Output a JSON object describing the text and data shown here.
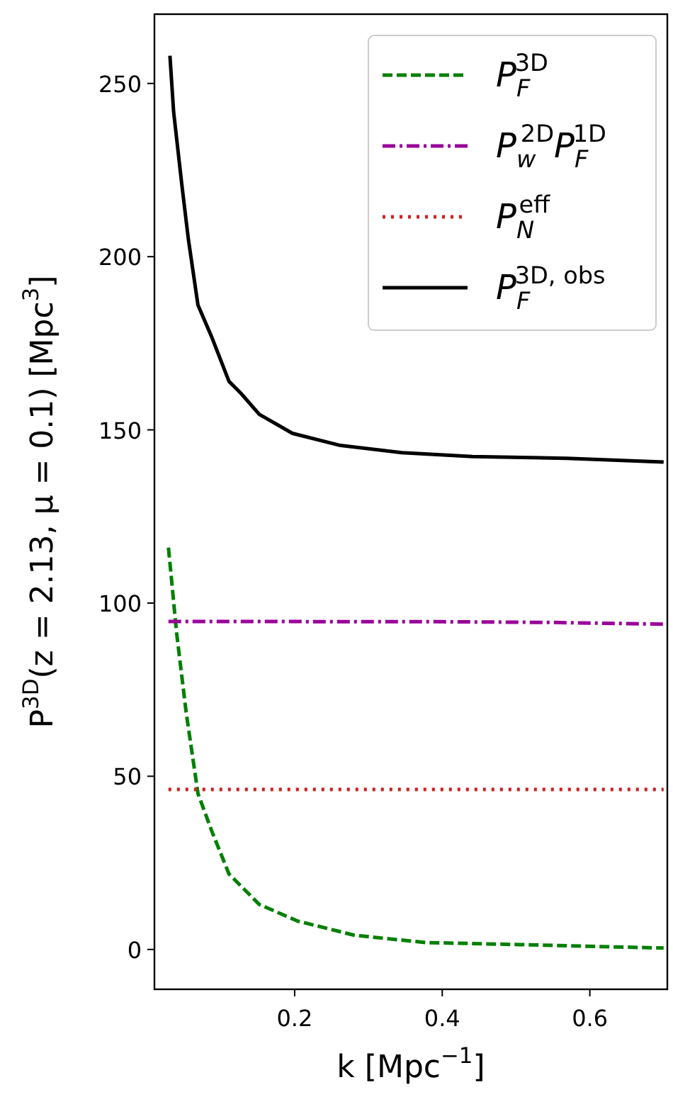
{
  "chart_data": {
    "type": "line",
    "xlabel": "k   [Mpc$^{−1}$]",
    "ylabel": "P$^{3D}$(z = 2.13, μ = 0.1)   [Mpc$^{3}$]",
    "xlim": [
      0.01,
      0.705
    ],
    "xticks": [
      0.2,
      0.4,
      0.6
    ],
    "ylim": [
      -11.5,
      270
    ],
    "yticks": [
      0,
      50,
      100,
      150,
      200,
      250
    ],
    "grid": false,
    "legend": "top right",
    "series": [
      {
        "name": "P$_{F}$$^{3D}$",
        "color": "#008000",
        "line_style": "dashed",
        "x": [
          0.029,
          0.04,
          0.053,
          0.069,
          0.088,
          0.111,
          0.152,
          0.204,
          0.281,
          0.377,
          0.505,
          0.7
        ],
        "values": [
          116,
          91.5,
          68.4,
          45,
          34,
          21.8,
          13,
          8.2,
          4.1,
          2,
          1.4,
          0.4
        ]
      },
      {
        "name": "P$_{w}$$^{2D}$P$_{F}$$^{1D}$",
        "color": "#990099",
        "line_style": "dashdot",
        "x": [
          0.029,
          0.4,
          0.55,
          0.7
        ],
        "values": [
          94.7,
          94.6,
          94.4,
          93.9
        ]
      },
      {
        "name": "P$_{N}$$^{eff}$",
        "color": "#cc2222",
        "line_style": "dotted",
        "x": [
          0.029,
          0.7
        ],
        "values": [
          46.2,
          46.2
        ]
      },
      {
        "name": "P$_{F}$$^{3D, obs}$",
        "color": "#000000",
        "line_style": "solid",
        "x": [
          0.031,
          0.036,
          0.047,
          0.056,
          0.069,
          0.088,
          0.111,
          0.127,
          0.152,
          0.197,
          0.262,
          0.345,
          0.441,
          0.569,
          0.7
        ],
        "values": [
          258,
          241.8,
          221,
          205,
          186,
          176.6,
          164,
          160.6,
          154.5,
          149,
          145.5,
          143.4,
          142.3,
          141.8,
          140.7
        ]
      }
    ]
  }
}
